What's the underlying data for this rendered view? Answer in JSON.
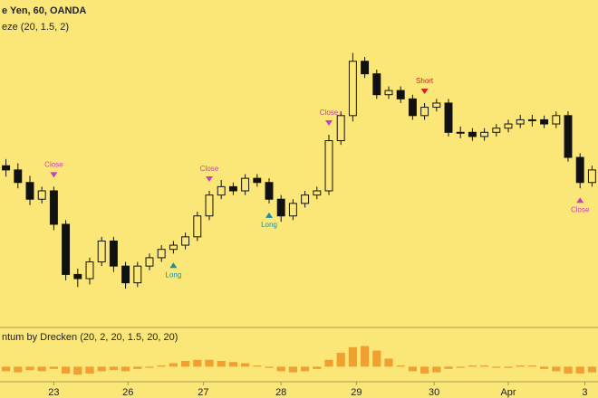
{
  "chart_data": {
    "type": "candlestick",
    "title": "e Yen, 60, OANDA",
    "subtitle": "eze (20, 1.5, 2)",
    "background": "#fae778",
    "candle_color": "#111111",
    "xlim": [
      -0.5,
      49.5
    ],
    "ylim": [
      0,
      330
    ],
    "xticks": [
      {
        "value": 4,
        "label": "23"
      },
      {
        "value": 10.2,
        "label": "26"
      },
      {
        "value": 16.5,
        "label": "27"
      },
      {
        "value": 23,
        "label": "28"
      },
      {
        "value": 29.3,
        "label": "29"
      },
      {
        "value": 35.8,
        "label": "30"
      },
      {
        "value": 42,
        "label": "Apr"
      },
      {
        "value": 48.4,
        "label": "3"
      }
    ],
    "open": [
      175,
      170,
      155,
      135,
      145,
      105,
      45,
      40,
      60,
      85,
      55,
      35,
      55,
      65,
      75,
      80,
      90,
      115,
      140,
      150,
      145,
      160,
      155,
      135,
      115,
      130,
      140,
      145,
      205,
      235,
      300,
      285,
      260,
      265,
      255,
      235,
      245,
      250,
      215,
      215,
      210,
      215,
      220,
      225,
      230,
      230,
      225,
      235,
      185,
      155
    ],
    "high": [
      183,
      178,
      163,
      150,
      150,
      110,
      52,
      65,
      90,
      90,
      60,
      60,
      70,
      80,
      85,
      95,
      120,
      145,
      158,
      155,
      165,
      165,
      160,
      140,
      135,
      145,
      150,
      212,
      240,
      310,
      305,
      290,
      270,
      270,
      260,
      250,
      255,
      255,
      222,
      220,
      220,
      225,
      230,
      236,
      236,
      235,
      240,
      240,
      190,
      175
    ],
    "low": [
      162,
      148,
      128,
      130,
      98,
      38,
      30,
      33,
      55,
      48,
      28,
      30,
      50,
      60,
      70,
      75,
      85,
      110,
      135,
      140,
      140,
      150,
      130,
      108,
      110,
      125,
      135,
      140,
      200,
      228,
      280,
      255,
      255,
      250,
      230,
      230,
      240,
      210,
      208,
      205,
      205,
      210,
      215,
      220,
      222,
      220,
      220,
      180,
      148,
      150
    ],
    "close": [
      170,
      155,
      135,
      145,
      105,
      45,
      40,
      60,
      85,
      55,
      35,
      55,
      65,
      75,
      80,
      90,
      115,
      140,
      150,
      145,
      160,
      155,
      135,
      115,
      130,
      140,
      145,
      205,
      235,
      300,
      285,
      260,
      265,
      255,
      235,
      245,
      250,
      215,
      215,
      210,
      215,
      220,
      225,
      230,
      230,
      225,
      235,
      185,
      155,
      170
    ],
    "annotations": [
      {
        "text": "Close",
        "index": 4,
        "position": "above",
        "color": "#c83cc8"
      },
      {
        "text": "Close",
        "index": 17,
        "position": "above",
        "color": "#c83cc8"
      },
      {
        "text": "Close",
        "index": 27,
        "position": "above",
        "color": "#c83cc8"
      },
      {
        "text": "Long",
        "index": 14,
        "position": "below",
        "color": "#1a8fa0"
      },
      {
        "text": "Long",
        "index": 22,
        "position": "below",
        "color": "#1a8fa0"
      },
      {
        "text": "Short",
        "index": 35,
        "position": "above",
        "color": "#d42020"
      },
      {
        "text": "Close",
        "index": 48,
        "position": "below",
        "color": "#c83cc8"
      }
    ],
    "indicator": {
      "type": "bar",
      "title": "ntum by Drecken (20, 2, 20, 1.5, 20, 20)",
      "color": "#f0a030",
      "ylim": [
        -0.5,
        1
      ],
      "values": [
        -0.2,
        -0.25,
        -0.15,
        -0.2,
        -0.1,
        -0.3,
        -0.35,
        -0.3,
        -0.2,
        -0.15,
        -0.2,
        -0.1,
        -0.05,
        0.05,
        0.15,
        0.25,
        0.3,
        0.3,
        0.25,
        0.2,
        0.15,
        0.05,
        -0.05,
        -0.2,
        -0.25,
        -0.2,
        -0.1,
        0.3,
        0.6,
        0.85,
        0.9,
        0.7,
        0.35,
        0.05,
        -0.2,
        -0.3,
        -0.25,
        -0.1,
        -0.05,
        0.05,
        0.05,
        -0.05,
        -0.05,
        0.05,
        0.05,
        -0.1,
        -0.2,
        -0.3,
        -0.3,
        -0.25
      ]
    }
  }
}
